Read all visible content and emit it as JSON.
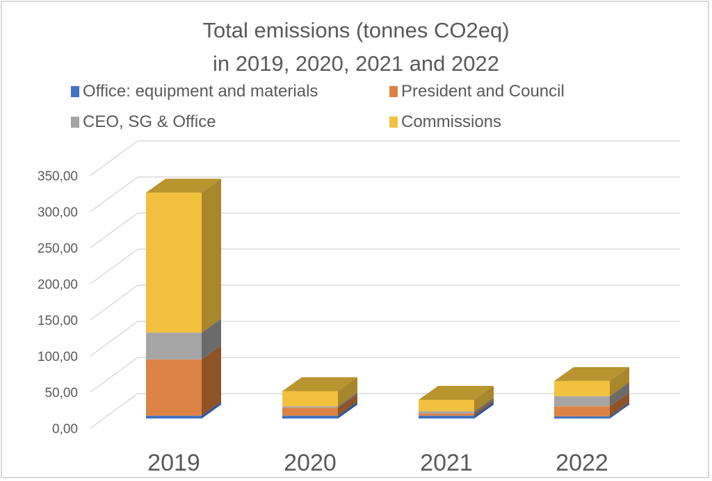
{
  "chart_data": {
    "type": "bar",
    "variant": "3d-stacked-column",
    "title": [
      "Total emissions (tonnes CO2eq)",
      "in 2019, 2020, 2021 and 2022"
    ],
    "xlabel": "",
    "ylabel": "",
    "categories": [
      "2019",
      "2020",
      "2021",
      "2022"
    ],
    "series": [
      {
        "name": "Office: equipment and materials",
        "color": "#4472C4",
        "side": "#2F5597",
        "values": [
          4,
          4,
          4,
          3
        ]
      },
      {
        "name": "President and Council",
        "color": "#DD8245",
        "side": "#8F5328",
        "values": [
          78,
          11,
          3,
          14
        ]
      },
      {
        "name": "CEO, SG & Office",
        "color": "#A5A5A5",
        "side": "#6B6B6B",
        "values": [
          37,
          2,
          3,
          14
        ]
      },
      {
        "name": "Commissions",
        "color": "#F2C140",
        "side": "#A8862B",
        "top": "#B8952E",
        "values": [
          194,
          21,
          16,
          21
        ]
      }
    ],
    "yticks": [
      "0,00",
      "50,00",
      "100,00",
      "150,00",
      "200,00",
      "250,00",
      "300,00",
      "350,00"
    ],
    "ylim": [
      0,
      350
    ],
    "grid": true,
    "legend_position": "top",
    "colors": {
      "text": "#595959",
      "grid": "#d9d9d9",
      "border": "#d9d9d9"
    }
  }
}
